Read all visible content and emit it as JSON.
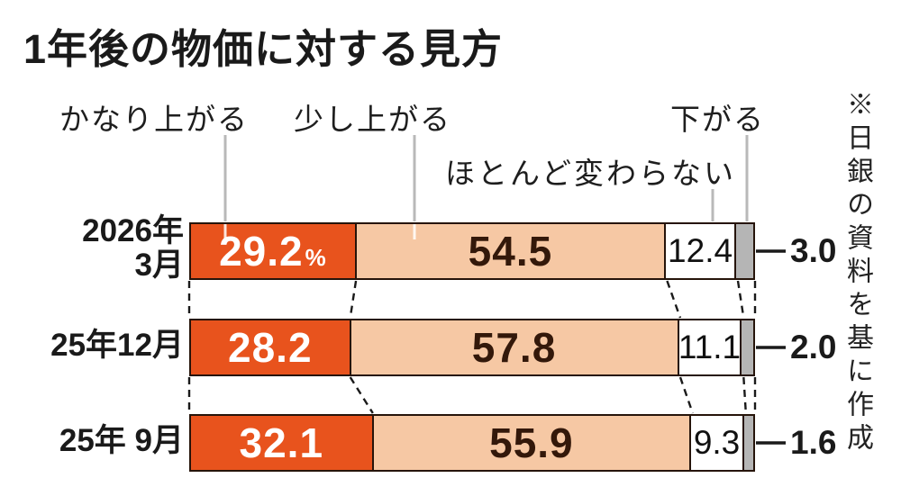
{
  "title": "1年後の物価に対する見方",
  "source_note": "※日銀の資料を基に作成",
  "colors": {
    "strong_rise": "#e8531d",
    "slight_rise": "#f6c8a4",
    "unchanged": "#ffffff",
    "fall": "#b5b5b5",
    "bar_border": "#26140a",
    "leader_line": "#b9b9b9",
    "connector": "#1a1a1a",
    "value_on_orange": "#ffffff",
    "value_on_peach": "#33180a",
    "value_on_white": "#111111"
  },
  "chart_data": {
    "type": "bar",
    "variant": "horizontal-stacked",
    "unit": "%",
    "title": "1年後の物価に対する見方",
    "categories": [
      "2026年 3月",
      "25年12月",
      "25年 9月"
    ],
    "category_lines": [
      [
        "2026年",
        "3月"
      ],
      [
        "25年12月"
      ],
      [
        "25年 9月"
      ]
    ],
    "series": [
      {
        "name": "かなり上がる",
        "color": "#e8531d",
        "values": [
          29.2,
          28.2,
          32.1
        ]
      },
      {
        "name": "少し上がる",
        "color": "#f6c8a4",
        "values": [
          54.5,
          57.8,
          55.9
        ]
      },
      {
        "name": "ほとんど変わらない",
        "color": "#ffffff",
        "values": [
          12.4,
          11.1,
          9.3
        ]
      },
      {
        "name": "下がる",
        "color": "#b5b5b5",
        "values": [
          3.0,
          2.0,
          1.6
        ]
      }
    ],
    "value_labels": [
      [
        "29.2%",
        "54.5",
        "12.4",
        "3.0"
      ],
      [
        "28.2",
        "57.8",
        "11.1",
        "2.0"
      ],
      [
        "32.1",
        "55.9",
        "9.3",
        "1.6"
      ]
    ],
    "xlim": [
      0,
      100
    ],
    "grid": false,
    "legend_position": "above-with-leader-lines",
    "source": "※日銀の資料を基に作成"
  }
}
